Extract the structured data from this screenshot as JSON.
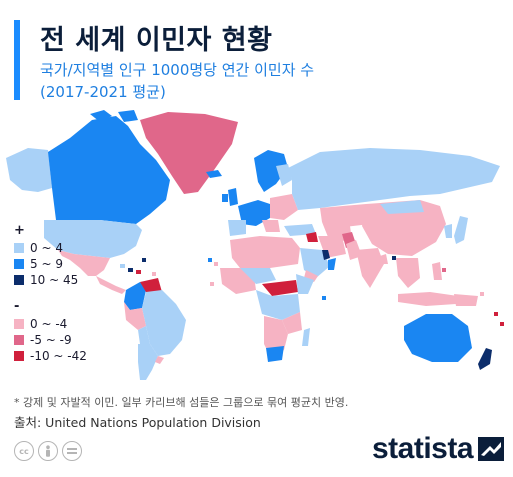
{
  "header": {
    "title": "전 세계 이민자 현황",
    "subtitle_line1": "국가/지역별 인구 1000명당 연간 이민자 수",
    "subtitle_line2": "(2017-2021 평균)"
  },
  "legend": {
    "positive_header": "+",
    "positive": [
      {
        "label": "0 ~ 4",
        "color": "#a9d1f7"
      },
      {
        "label": "5 ~ 9",
        "color": "#1a86f2"
      },
      {
        "label": "10 ~ 45",
        "color": "#0c2d6b"
      }
    ],
    "negative_header": "-",
    "negative": [
      {
        "label": "0 ~ -4",
        "color": "#f6b3c3"
      },
      {
        "label": "-5 ~ -9",
        "color": "#e0678a"
      },
      {
        "label": "-10 ~ -42",
        "color": "#d0203c"
      }
    ]
  },
  "footnote": "* 강제 및 자발적 이민. 일부 카리브해 섬들은 그룹으로 묶여 평균치 반영.",
  "source": "출처: United Nations Population Division",
  "license_icons": [
    "cc-icon",
    "attribution-icon",
    "no-derivatives-icon"
  ],
  "brand": {
    "name": "statista"
  }
}
